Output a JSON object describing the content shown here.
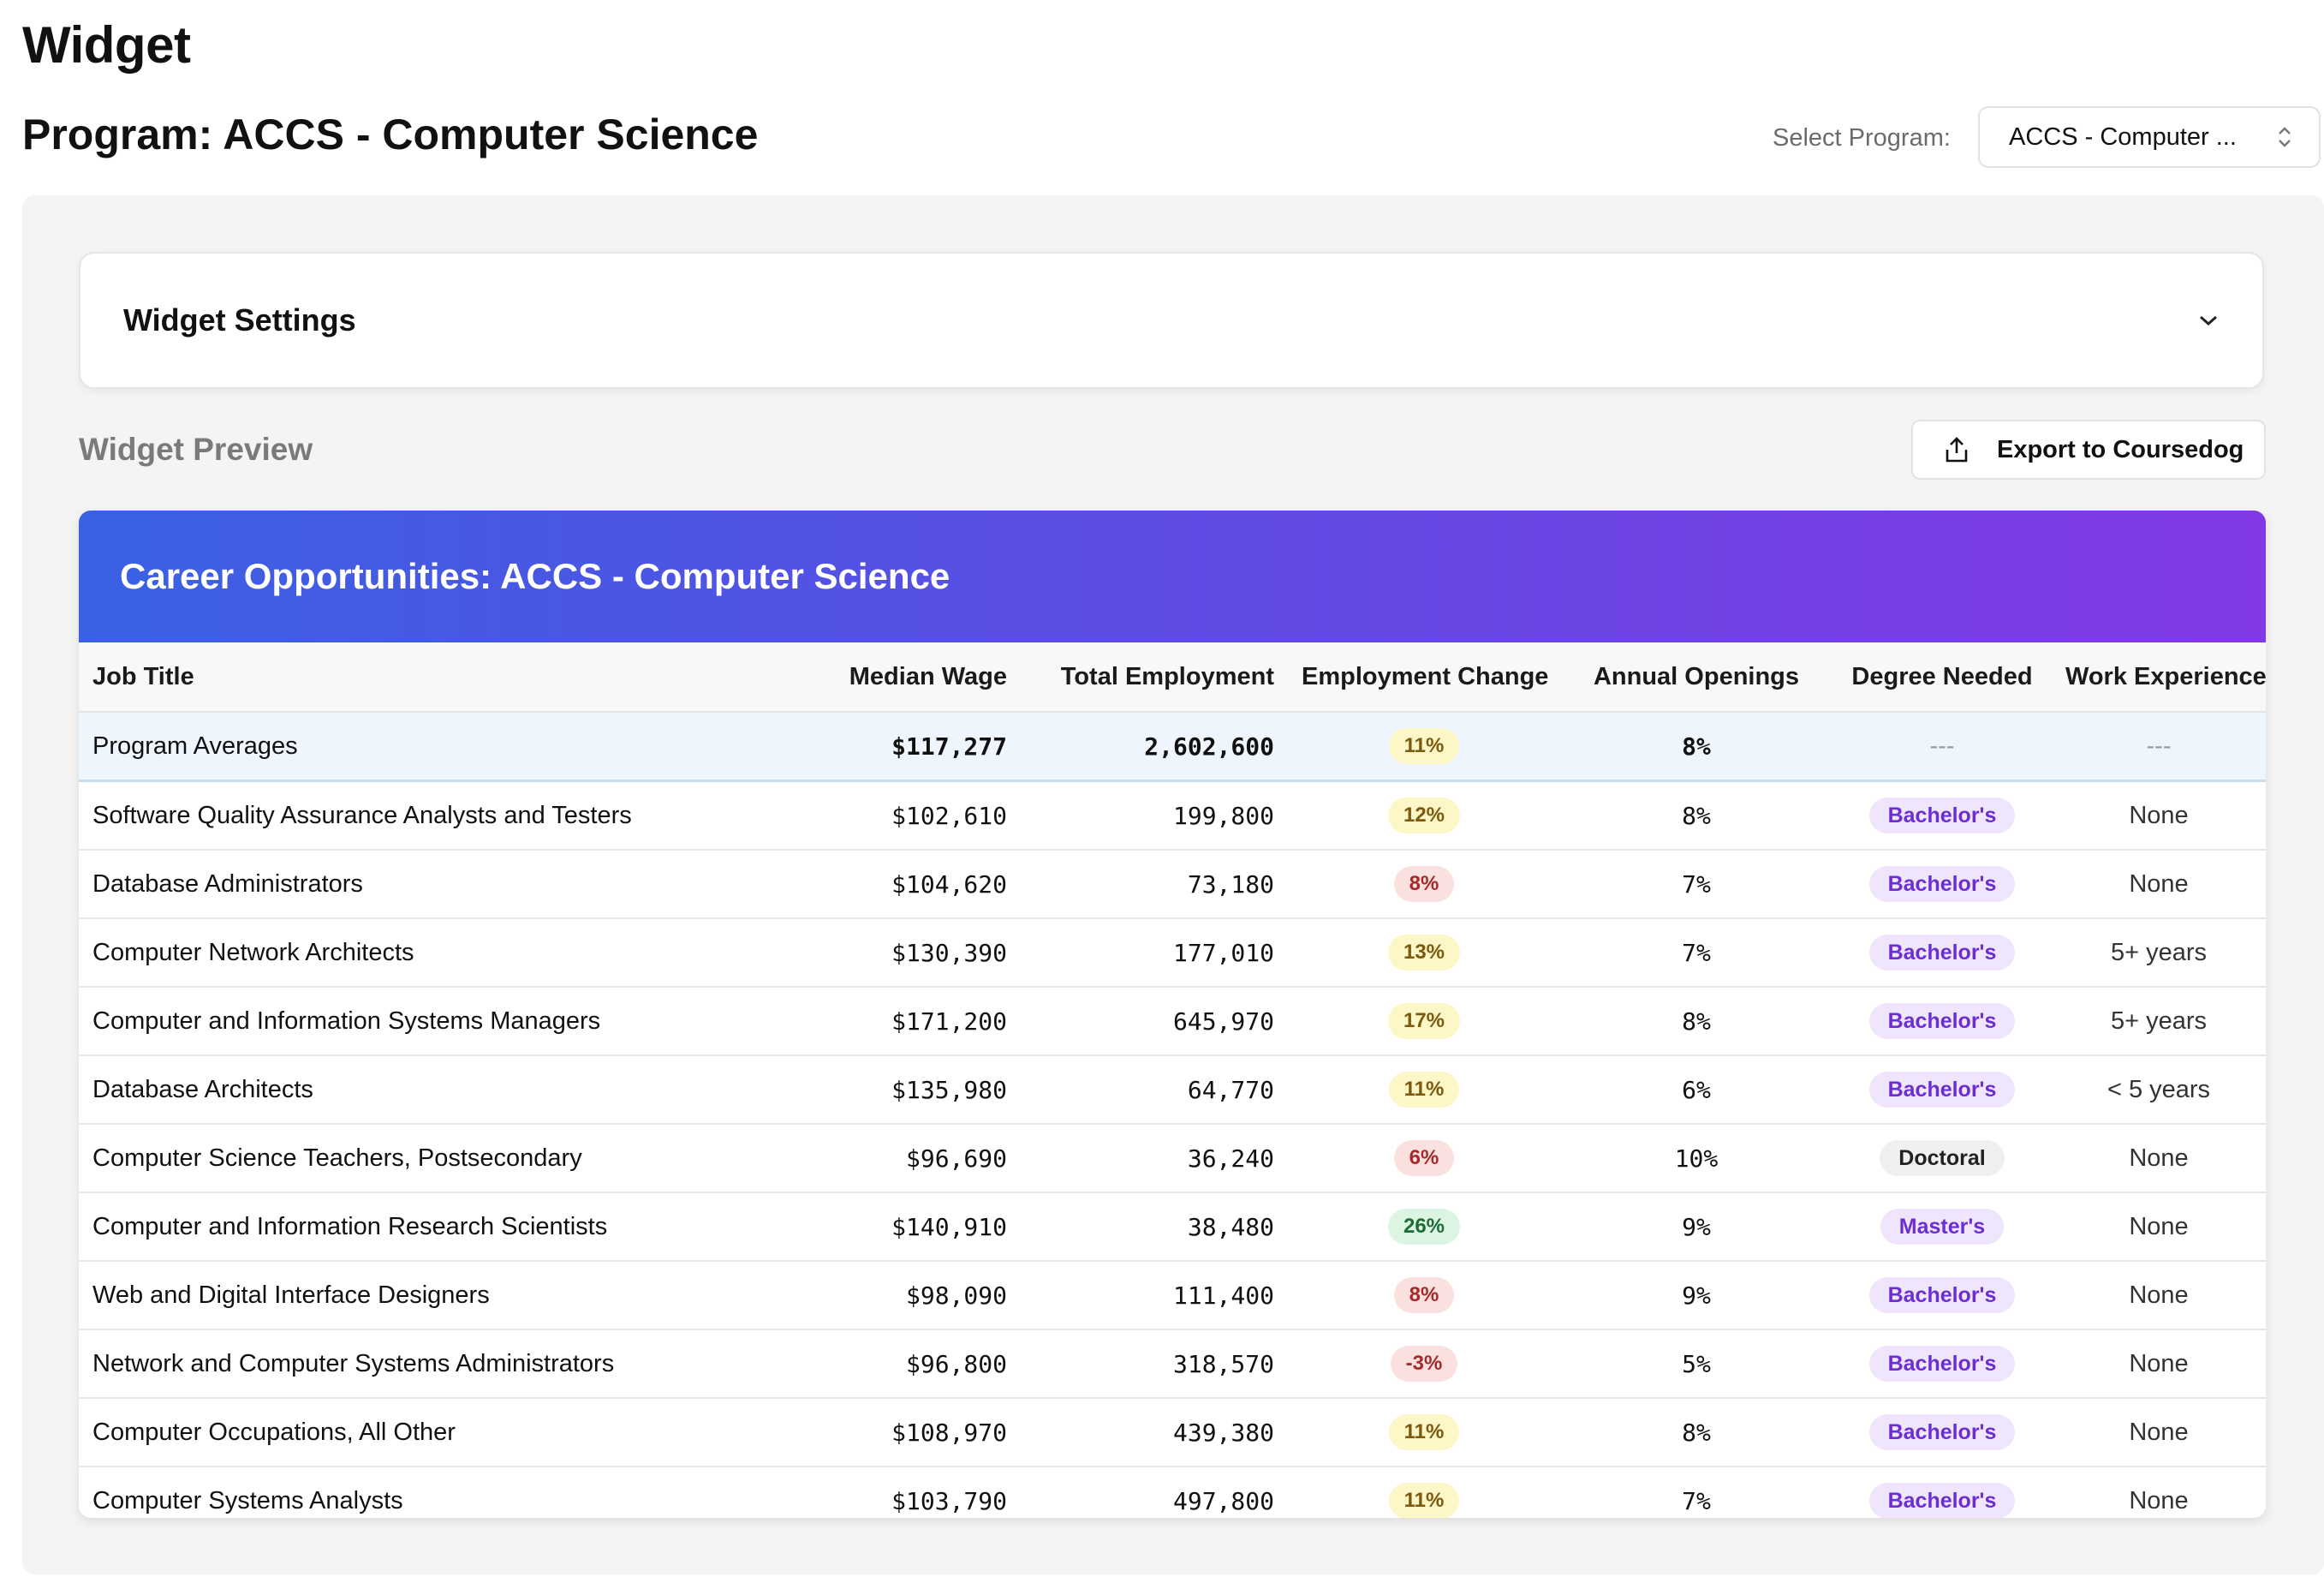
{
  "page": {
    "title": "Widget",
    "program_title": "Program: ACCS - Computer Science"
  },
  "program_select": {
    "label": "Select Program:",
    "value": "ACCS - Computer ..."
  },
  "settings": {
    "label": "Widget Settings"
  },
  "preview": {
    "label": "Widget Preview",
    "export_label": "Export to Coursedog"
  },
  "widget": {
    "title": "Career Opportunities: ACCS - Computer Science",
    "columns": [
      "Job Title",
      "Median Wage",
      "Total Employment",
      "Employment Change",
      "Annual Openings",
      "Degree Needed",
      "Work Experience"
    ],
    "averages": {
      "title": "Program Averages",
      "wage": "$117,277",
      "employment": "2,602,600",
      "change": "11%",
      "openings": "8%",
      "degree": "---",
      "experience": "---"
    },
    "rows": [
      {
        "title": "Software Quality Assurance Analysts and Testers",
        "wage": "$102,610",
        "employment": "199,800",
        "change": "12%",
        "openings": "8%",
        "degree": "Bachelor's",
        "experience": "None"
      },
      {
        "title": "Database Administrators",
        "wage": "$104,620",
        "employment": "73,180",
        "change": "8%",
        "openings": "7%",
        "degree": "Bachelor's",
        "experience": "None"
      },
      {
        "title": "Computer Network Architects",
        "wage": "$130,390",
        "employment": "177,010",
        "change": "13%",
        "openings": "7%",
        "degree": "Bachelor's",
        "experience": "5+ years"
      },
      {
        "title": "Computer and Information Systems Managers",
        "wage": "$171,200",
        "employment": "645,970",
        "change": "17%",
        "openings": "8%",
        "degree": "Bachelor's",
        "experience": "5+ years"
      },
      {
        "title": "Database Architects",
        "wage": "$135,980",
        "employment": "64,770",
        "change": "11%",
        "openings": "6%",
        "degree": "Bachelor's",
        "experience": "< 5 years"
      },
      {
        "title": "Computer Science Teachers, Postsecondary",
        "wage": "$96,690",
        "employment": "36,240",
        "change": "6%",
        "openings": "10%",
        "degree": "Doctoral",
        "experience": "None"
      },
      {
        "title": "Computer and Information Research Scientists",
        "wage": "$140,910",
        "employment": "38,480",
        "change": "26%",
        "openings": "9%",
        "degree": "Master's",
        "experience": "None"
      },
      {
        "title": "Web and Digital Interface Designers",
        "wage": "$98,090",
        "employment": "111,400",
        "change": "8%",
        "openings": "9%",
        "degree": "Bachelor's",
        "experience": "None"
      },
      {
        "title": "Network and Computer Systems Administrators",
        "wage": "$96,800",
        "employment": "318,570",
        "change": "-3%",
        "openings": "5%",
        "degree": "Bachelor's",
        "experience": "None"
      },
      {
        "title": "Computer Occupations, All Other",
        "wage": "$108,970",
        "employment": "439,380",
        "change": "11%",
        "openings": "8%",
        "degree": "Bachelor's",
        "experience": "None"
      },
      {
        "title": "Computer Systems Analysts",
        "wage": "$103,790",
        "employment": "497,800",
        "change": "11%",
        "openings": "7%",
        "degree": "Bachelor's",
        "experience": "None"
      }
    ]
  }
}
